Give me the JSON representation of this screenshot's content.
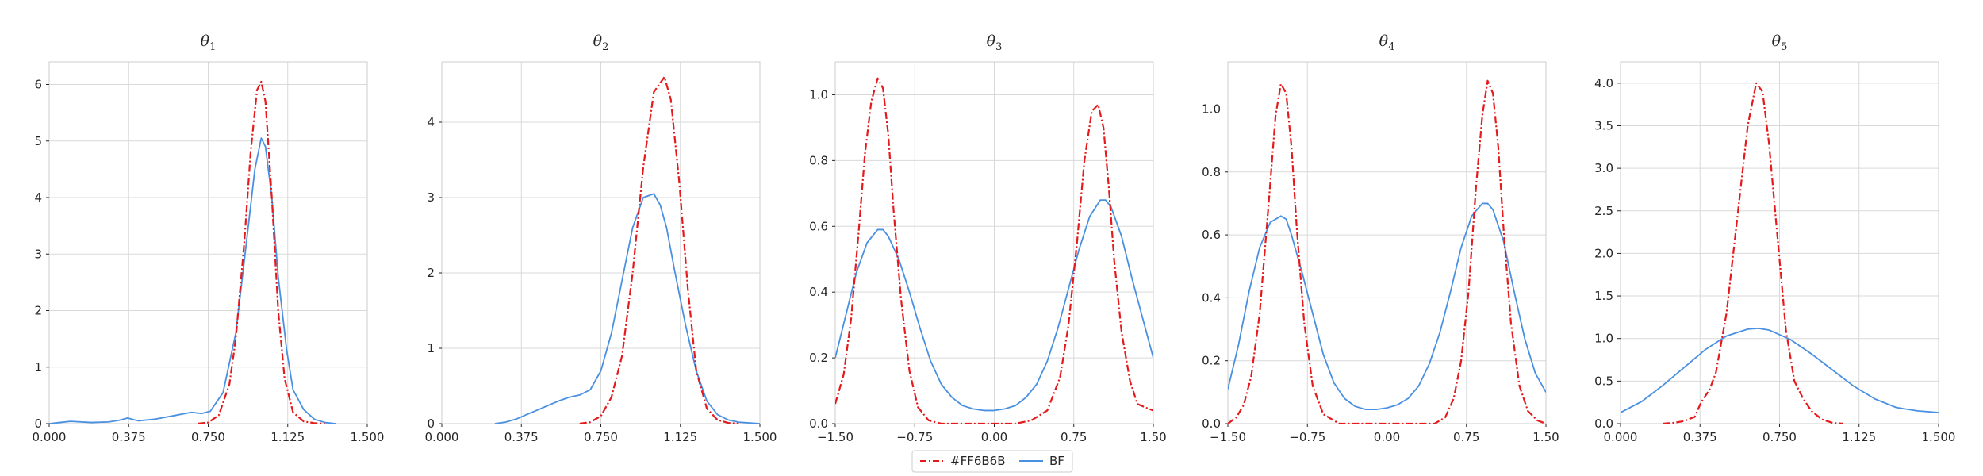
{
  "chart_data": [
    {
      "type": "line",
      "title": "θ1",
      "title_base": "θ",
      "title_sub": "1",
      "xlim": [
        0,
        1.5
      ],
      "ylim": [
        0,
        6.4
      ],
      "xticks": [
        0,
        0.375,
        0.75,
        1.125,
        1.5
      ],
      "xtick_labels": [
        "0.000",
        "0.375",
        "0.750",
        "1.125",
        "1.500"
      ],
      "yticks": [
        0,
        1,
        2,
        3,
        4,
        5,
        6
      ],
      "ytick_labels": [
        "0",
        "1",
        "2",
        "3",
        "4",
        "5",
        "6"
      ],
      "series": [
        {
          "name": "#FF6B6B",
          "x": [
            0.7,
            0.75,
            0.8,
            0.85,
            0.88,
            0.92,
            0.95,
            0.98,
            1.0,
            1.02,
            1.05,
            1.08,
            1.11,
            1.15,
            1.2,
            1.25,
            1.3
          ],
          "y": [
            0.0,
            0.02,
            0.15,
            0.7,
            1.5,
            3.2,
            4.8,
            5.9,
            6.05,
            5.7,
            4.0,
            2.0,
            0.8,
            0.2,
            0.04,
            0.01,
            0.0
          ]
        },
        {
          "name": "BF",
          "x": [
            0.0,
            0.05,
            0.1,
            0.2,
            0.28,
            0.33,
            0.37,
            0.42,
            0.5,
            0.6,
            0.67,
            0.72,
            0.76,
            0.82,
            0.88,
            0.93,
            0.97,
            1.0,
            1.02,
            1.05,
            1.08,
            1.12,
            1.15,
            1.2,
            1.25,
            1.3,
            1.35
          ],
          "y": [
            0.0,
            0.02,
            0.04,
            0.02,
            0.03,
            0.06,
            0.1,
            0.05,
            0.08,
            0.15,
            0.2,
            0.18,
            0.22,
            0.55,
            1.6,
            3.2,
            4.5,
            5.05,
            4.9,
            4.0,
            2.6,
            1.3,
            0.6,
            0.25,
            0.08,
            0.02,
            0.0
          ]
        }
      ]
    },
    {
      "type": "line",
      "title": "θ2",
      "title_base": "θ",
      "title_sub": "2",
      "xlim": [
        0,
        1.5
      ],
      "ylim": [
        0,
        4.8
      ],
      "xticks": [
        0,
        0.375,
        0.75,
        1.125,
        1.5
      ],
      "xtick_labels": [
        "0.000",
        "0.375",
        "0.750",
        "1.125",
        "1.500"
      ],
      "yticks": [
        0,
        1,
        2,
        3,
        4
      ],
      "ytick_labels": [
        "0",
        "1",
        "2",
        "3",
        "4"
      ],
      "series": [
        {
          "name": "#FF6B6B",
          "x": [
            0.65,
            0.7,
            0.75,
            0.8,
            0.85,
            0.9,
            0.95,
            1.0,
            1.05,
            1.08,
            1.12,
            1.16,
            1.2,
            1.25,
            1.3,
            1.35,
            1.4
          ],
          "y": [
            0.0,
            0.02,
            0.1,
            0.35,
            0.9,
            2.0,
            3.4,
            4.4,
            4.6,
            4.3,
            3.2,
            1.8,
            0.7,
            0.2,
            0.05,
            0.01,
            0.0
          ]
        },
        {
          "name": "BF",
          "x": [
            0.25,
            0.3,
            0.35,
            0.4,
            0.45,
            0.5,
            0.55,
            0.6,
            0.65,
            0.7,
            0.75,
            0.8,
            0.85,
            0.9,
            0.95,
            1.0,
            1.03,
            1.06,
            1.1,
            1.15,
            1.2,
            1.25,
            1.3,
            1.35,
            1.4,
            1.5
          ],
          "y": [
            0.0,
            0.02,
            0.06,
            0.12,
            0.18,
            0.24,
            0.3,
            0.35,
            0.38,
            0.45,
            0.7,
            1.2,
            1.9,
            2.6,
            3.0,
            3.05,
            2.9,
            2.6,
            2.0,
            1.3,
            0.7,
            0.3,
            0.12,
            0.05,
            0.02,
            0.0
          ]
        }
      ]
    },
    {
      "type": "line",
      "title": "θ3",
      "title_base": "θ",
      "title_sub": "3",
      "xlim": [
        -1.5,
        1.5
      ],
      "ylim": [
        0,
        1.1
      ],
      "xticks": [
        -1.5,
        -0.75,
        0,
        0.75,
        1.5
      ],
      "xtick_labels": [
        "−1.50",
        "−0.75",
        "0.00",
        "0.75",
        "1.50"
      ],
      "yticks": [
        0,
        0.2,
        0.4,
        0.6,
        0.8,
        1.0
      ],
      "ytick_labels": [
        "0.0",
        "0.2",
        "0.4",
        "0.6",
        "0.8",
        "1.0"
      ],
      "series": [
        {
          "name": "#FF6B6B",
          "x": [
            -1.5,
            -1.42,
            -1.35,
            -1.28,
            -1.22,
            -1.16,
            -1.1,
            -1.05,
            -1.0,
            -0.95,
            -0.88,
            -0.8,
            -0.72,
            -0.62,
            -0.5,
            -0.35,
            -0.2,
            0.0,
            0.2,
            0.35,
            0.5,
            0.62,
            0.7,
            0.78,
            0.85,
            0.92,
            0.98,
            1.03,
            1.08,
            1.13,
            1.2,
            1.28,
            1.35,
            1.42,
            1.5
          ],
          "y": [
            0.06,
            0.15,
            0.32,
            0.58,
            0.82,
            0.98,
            1.05,
            1.02,
            0.88,
            0.65,
            0.38,
            0.16,
            0.05,
            0.01,
            0.0,
            0.0,
            0.0,
            0.0,
            0.0,
            0.01,
            0.04,
            0.14,
            0.3,
            0.55,
            0.8,
            0.95,
            0.97,
            0.9,
            0.72,
            0.5,
            0.28,
            0.13,
            0.06,
            0.05,
            0.04
          ]
        },
        {
          "name": "BF",
          "x": [
            -1.5,
            -1.4,
            -1.3,
            -1.2,
            -1.1,
            -1.05,
            -1.0,
            -0.9,
            -0.8,
            -0.7,
            -0.6,
            -0.5,
            -0.4,
            -0.3,
            -0.2,
            -0.1,
            0.0,
            0.1,
            0.2,
            0.3,
            0.4,
            0.5,
            0.6,
            0.7,
            0.8,
            0.9,
            1.0,
            1.05,
            1.1,
            1.2,
            1.3,
            1.4,
            1.5
          ],
          "y": [
            0.2,
            0.33,
            0.46,
            0.55,
            0.59,
            0.59,
            0.57,
            0.5,
            0.4,
            0.29,
            0.19,
            0.12,
            0.08,
            0.055,
            0.045,
            0.04,
            0.04,
            0.045,
            0.055,
            0.08,
            0.12,
            0.19,
            0.29,
            0.41,
            0.53,
            0.63,
            0.68,
            0.68,
            0.66,
            0.57,
            0.44,
            0.32,
            0.2
          ]
        }
      ]
    },
    {
      "type": "line",
      "title": "θ4",
      "title_base": "θ",
      "title_sub": "4",
      "xlim": [
        -1.5,
        1.5
      ],
      "ylim": [
        0,
        1.15
      ],
      "xticks": [
        -1.5,
        -0.75,
        0,
        0.75,
        1.5
      ],
      "xtick_labels": [
        "−1.50",
        "−0.75",
        "0.00",
        "0.75",
        "1.50"
      ],
      "yticks": [
        0,
        0.2,
        0.4,
        0.6,
        0.8,
        1.0
      ],
      "ytick_labels": [
        "0.0",
        "0.2",
        "0.4",
        "0.6",
        "0.8",
        "1.0"
      ],
      "series": [
        {
          "name": "#FF6B6B",
          "x": [
            -1.5,
            -1.42,
            -1.35,
            -1.28,
            -1.2,
            -1.12,
            -1.05,
            -1.0,
            -0.95,
            -0.9,
            -0.85,
            -0.78,
            -0.7,
            -0.6,
            -0.45,
            -0.3,
            0.0,
            0.3,
            0.45,
            0.55,
            0.63,
            0.7,
            0.77,
            0.84,
            0.9,
            0.95,
            1.0,
            1.05,
            1.1,
            1.17,
            1.25,
            1.33,
            1.42,
            1.5
          ],
          "y": [
            0.0,
            0.02,
            0.06,
            0.15,
            0.35,
            0.68,
            0.98,
            1.08,
            1.05,
            0.88,
            0.62,
            0.32,
            0.12,
            0.03,
            0.0,
            0.0,
            0.0,
            0.0,
            0.0,
            0.02,
            0.08,
            0.2,
            0.42,
            0.75,
            0.98,
            1.09,
            1.05,
            0.88,
            0.62,
            0.32,
            0.12,
            0.04,
            0.01,
            0.0
          ]
        },
        {
          "name": "BF",
          "x": [
            -1.5,
            -1.4,
            -1.3,
            -1.2,
            -1.1,
            -1.0,
            -0.95,
            -0.9,
            -0.8,
            -0.7,
            -0.6,
            -0.5,
            -0.4,
            -0.3,
            -0.2,
            -0.1,
            0.0,
            0.1,
            0.2,
            0.3,
            0.4,
            0.5,
            0.6,
            0.7,
            0.8,
            0.9,
            0.95,
            1.0,
            1.1,
            1.2,
            1.3,
            1.4,
            1.5
          ],
          "y": [
            0.11,
            0.25,
            0.42,
            0.56,
            0.64,
            0.66,
            0.65,
            0.6,
            0.48,
            0.35,
            0.22,
            0.13,
            0.08,
            0.055,
            0.045,
            0.045,
            0.05,
            0.06,
            0.08,
            0.12,
            0.19,
            0.29,
            0.42,
            0.56,
            0.66,
            0.7,
            0.7,
            0.68,
            0.58,
            0.42,
            0.27,
            0.16,
            0.1
          ]
        }
      ]
    },
    {
      "type": "line",
      "title": "θ5",
      "title_base": "θ",
      "title_sub": "5",
      "xlim": [
        0,
        1.5
      ],
      "ylim": [
        0,
        4.25
      ],
      "xticks": [
        0,
        0.375,
        0.75,
        1.125,
        1.5
      ],
      "xtick_labels": [
        "0.000",
        "0.375",
        "0.750",
        "1.125",
        "1.500"
      ],
      "yticks": [
        0,
        0.5,
        1.0,
        1.5,
        2.0,
        2.5,
        3.0,
        3.5,
        4.0
      ],
      "ytick_labels": [
        "0.0",
        "0.5",
        "1.0",
        "1.5",
        "2.0",
        "2.5",
        "3.0",
        "3.5",
        "4.0"
      ],
      "series": [
        {
          "name": "#FF6B6B",
          "x": [
            0.2,
            0.25,
            0.3,
            0.35,
            0.38,
            0.42,
            0.45,
            0.5,
            0.55,
            0.6,
            0.64,
            0.67,
            0.7,
            0.74,
            0.78,
            0.82,
            0.86,
            0.9,
            0.95,
            1.0,
            1.05
          ],
          "y": [
            0.0,
            0.01,
            0.03,
            0.08,
            0.25,
            0.4,
            0.6,
            1.3,
            2.4,
            3.5,
            4.0,
            3.9,
            3.3,
            2.2,
            1.1,
            0.5,
            0.3,
            0.15,
            0.05,
            0.01,
            0.0
          ]
        },
        {
          "name": "BF",
          "x": [
            0.0,
            0.1,
            0.2,
            0.3,
            0.4,
            0.5,
            0.6,
            0.65,
            0.7,
            0.8,
            0.9,
            1.0,
            1.1,
            1.2,
            1.3,
            1.4,
            1.5
          ],
          "y": [
            0.13,
            0.26,
            0.45,
            0.66,
            0.87,
            1.03,
            1.11,
            1.12,
            1.1,
            0.99,
            0.82,
            0.63,
            0.44,
            0.29,
            0.19,
            0.15,
            0.13
          ]
        }
      ]
    }
  ],
  "legend": {
    "location": "bottom-center",
    "entries": [
      {
        "label": "#FF6B6B",
        "color": "#e41a1c",
        "style": "dashdot"
      },
      {
        "label": "BF",
        "color": "#4a90e2",
        "style": "solid"
      }
    ]
  },
  "colors": {
    "red_series": "#e41a1c",
    "blue_series": "#4a90e2",
    "grid": "#d9d9d9",
    "axes_edge": "#cccccc",
    "text": "#262626"
  }
}
